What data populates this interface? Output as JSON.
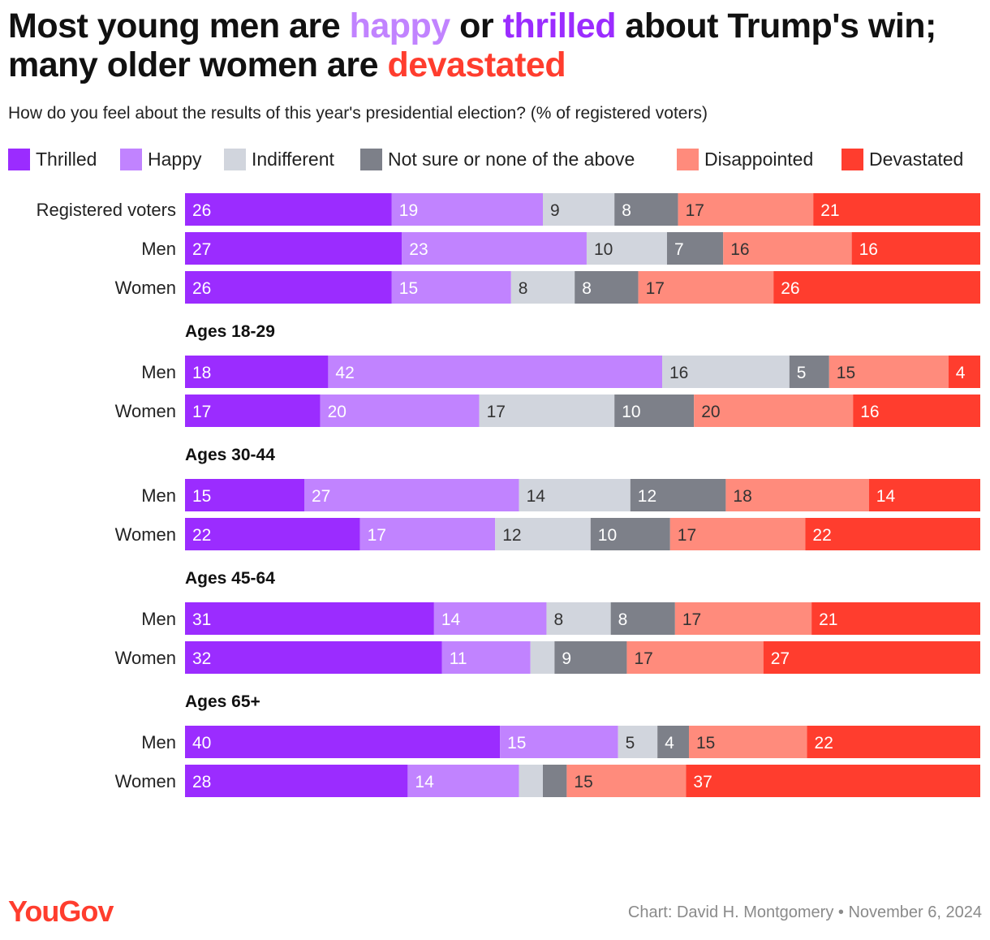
{
  "title": {
    "part1": "Most young men are ",
    "happy_word": "happy",
    "part2": " or ",
    "thrilled_word": "thrilled",
    "part3": " about Trump's win; many older women are ",
    "devastated_word": "devastated"
  },
  "subtitle": "How do you feel about the results of this year's presidential election? (% of registered voters)",
  "footer": {
    "logo": "YouGov",
    "credit": "Chart: David H. Montgomery • November 6, 2024"
  },
  "chart_data": {
    "type": "bar",
    "orientation": "horizontal-stacked-100",
    "title": "Most young men are happy or thrilled about Trump's win; many older women are devastated",
    "subtitle": "How do you feel about the results of this year's presidential election? (% of registered voters)",
    "legend_position": "top",
    "grid": false,
    "xlim": [
      0,
      100
    ],
    "series": [
      {
        "name": "Thrilled",
        "color": "#9b2cff",
        "text_color": "#ffffff"
      },
      {
        "name": "Happy",
        "color": "#c183ff",
        "text_color": "#ffffff"
      },
      {
        "name": "Indifferent",
        "color": "#d1d5dd",
        "text_color": "#333333"
      },
      {
        "name": "Not sure or none of the above",
        "color": "#7d8089",
        "text_color": "#ffffff"
      },
      {
        "name": "Disappointed",
        "color": "#ff8b7c",
        "text_color": "#333333"
      },
      {
        "name": "Devastated",
        "color": "#ff3d2e",
        "text_color": "#ffffff"
      }
    ],
    "groups": [
      {
        "label": "",
        "rows": [
          {
            "label": "Registered voters",
            "values": [
              26,
              19,
              9,
              8,
              17,
              21
            ]
          },
          {
            "label": "Men",
            "values": [
              27,
              23,
              10,
              7,
              16,
              16
            ]
          },
          {
            "label": "Women",
            "values": [
              26,
              15,
              8,
              8,
              17,
              26
            ]
          }
        ]
      },
      {
        "label": "Ages 18-29",
        "rows": [
          {
            "label": "Men",
            "values": [
              18,
              42,
              16,
              5,
              15,
              4
            ]
          },
          {
            "label": "Women",
            "values": [
              17,
              20,
              17,
              10,
              20,
              16
            ]
          }
        ]
      },
      {
        "label": "Ages 30-44",
        "rows": [
          {
            "label": "Men",
            "values": [
              15,
              27,
              14,
              12,
              18,
              14
            ]
          },
          {
            "label": "Women",
            "values": [
              22,
              17,
              12,
              10,
              17,
              22
            ]
          }
        ]
      },
      {
        "label": "Ages 45-64",
        "rows": [
          {
            "label": "Men",
            "values": [
              31,
              14,
              8,
              8,
              17,
              21
            ]
          },
          {
            "label": "Women",
            "values": [
              32,
              11,
              3,
              9,
              17,
              27
            ]
          }
        ]
      },
      {
        "label": "Ages 65+",
        "rows": [
          {
            "label": "Men",
            "values": [
              40,
              15,
              5,
              4,
              15,
              22
            ]
          },
          {
            "label": "Women",
            "values": [
              28,
              14,
              3,
              3,
              15,
              37
            ]
          }
        ]
      }
    ],
    "label_min_value": 4
  }
}
